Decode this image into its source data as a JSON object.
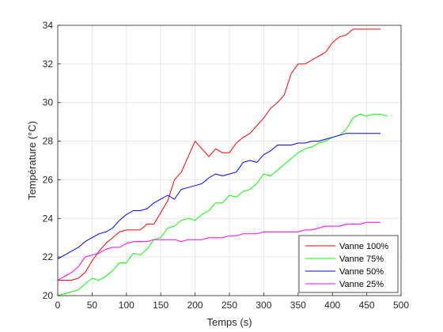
{
  "chart_data": {
    "type": "line",
    "title": "",
    "xlabel": "Temps (s)",
    "ylabel": "Température (°C)",
    "xlim": [
      0,
      500
    ],
    "ylim": [
      20,
      34
    ],
    "xticks": [
      0,
      50,
      100,
      150,
      200,
      250,
      300,
      350,
      400,
      450,
      500
    ],
    "yticks": [
      20,
      22,
      24,
      26,
      28,
      30,
      32,
      34
    ],
    "grid": true,
    "legend_position": "bottom-right",
    "series": [
      {
        "name": "Vanne 100%",
        "color": "#ff0000",
        "x": [
          0,
          10,
          20,
          30,
          40,
          50,
          60,
          70,
          80,
          90,
          100,
          110,
          120,
          130,
          140,
          150,
          160,
          170,
          180,
          190,
          200,
          210,
          220,
          230,
          240,
          250,
          260,
          270,
          280,
          290,
          300,
          310,
          320,
          330,
          340,
          350,
          360,
          370,
          380,
          390,
          400,
          410,
          420,
          430,
          440,
          450,
          460,
          470
        ],
        "y": [
          20.8,
          20.8,
          20.8,
          20.9,
          21.2,
          21.8,
          22.3,
          22.7,
          23.0,
          23.3,
          23.4,
          23.4,
          23.4,
          23.7,
          23.7,
          24.3,
          24.9,
          26.0,
          26.4,
          27.2,
          28.0,
          27.6,
          27.2,
          27.6,
          27.4,
          27.4,
          27.9,
          28.2,
          28.4,
          28.8,
          29.2,
          29.7,
          30.0,
          30.4,
          31.5,
          32.0,
          32.0,
          32.2,
          32.4,
          32.6,
          33.1,
          33.4,
          33.5,
          33.8,
          33.8,
          33.8,
          33.8,
          33.8
        ],
        "y_note": ""
      },
      {
        "name": "Vanne 75%",
        "color": "#00ff00",
        "x": [
          0,
          10,
          20,
          30,
          40,
          50,
          60,
          70,
          80,
          90,
          100,
          110,
          120,
          130,
          140,
          150,
          160,
          170,
          180,
          190,
          200,
          210,
          220,
          230,
          240,
          250,
          260,
          270,
          280,
          290,
          300,
          310,
          320,
          330,
          340,
          350,
          360,
          370,
          380,
          390,
          400,
          410,
          420,
          430,
          440,
          450,
          460,
          470,
          480
        ],
        "y": [
          20.0,
          20.1,
          20.2,
          20.3,
          20.6,
          20.9,
          20.8,
          21.0,
          21.3,
          21.7,
          21.7,
          22.2,
          22.1,
          22.4,
          22.9,
          23.0,
          23.5,
          23.6,
          23.9,
          24.0,
          23.9,
          24.2,
          24.4,
          24.8,
          24.8,
          25.2,
          25.1,
          25.4,
          25.5,
          25.8,
          26.3,
          26.2,
          26.5,
          26.8,
          27.1,
          27.4,
          27.6,
          27.7,
          27.9,
          28.0,
          28.2,
          28.3,
          28.6,
          29.2,
          29.4,
          29.3,
          29.4,
          29.4,
          29.3
        ],
        "y_note": ""
      },
      {
        "name": "Vanne 50%",
        "color": "#0000ff",
        "x": [
          0,
          10,
          20,
          30,
          40,
          50,
          60,
          70,
          80,
          90,
          100,
          110,
          120,
          130,
          140,
          150,
          160,
          170,
          180,
          190,
          200,
          210,
          220,
          230,
          240,
          250,
          260,
          270,
          280,
          290,
          300,
          310,
          320,
          330,
          340,
          350,
          360,
          370,
          380,
          390,
          400,
          410,
          420,
          430,
          440,
          450,
          460,
          470
        ],
        "y": [
          21.9,
          22.1,
          22.3,
          22.5,
          22.8,
          23.0,
          23.2,
          23.3,
          23.5,
          23.9,
          24.2,
          24.4,
          24.4,
          24.5,
          24.8,
          25.0,
          25.2,
          25.0,
          25.5,
          25.6,
          25.7,
          25.8,
          26.1,
          26.3,
          26.2,
          26.3,
          26.4,
          26.9,
          27.0,
          26.9,
          27.3,
          27.5,
          27.8,
          27.8,
          27.8,
          27.9,
          27.9,
          28.0,
          28.0,
          28.1,
          28.2,
          28.3,
          28.4,
          28.4,
          28.4,
          28.4,
          28.4,
          28.4
        ],
        "y_note": ""
      },
      {
        "name": "Vanne 25%",
        "color": "#ff00ff",
        "x": [
          0,
          10,
          20,
          30,
          40,
          50,
          60,
          70,
          80,
          90,
          100,
          110,
          120,
          130,
          140,
          150,
          160,
          170,
          180,
          190,
          200,
          210,
          220,
          230,
          240,
          250,
          260,
          270,
          280,
          290,
          300,
          310,
          320,
          330,
          340,
          350,
          360,
          370,
          380,
          390,
          400,
          410,
          420,
          430,
          440,
          450,
          460,
          470
        ],
        "y": [
          20.8,
          21.0,
          21.2,
          21.5,
          22.0,
          22.1,
          22.2,
          22.4,
          22.5,
          22.5,
          22.7,
          22.8,
          22.8,
          22.8,
          22.9,
          22.9,
          22.9,
          22.9,
          22.8,
          22.9,
          22.9,
          22.9,
          23.0,
          23.0,
          23.0,
          23.1,
          23.1,
          23.2,
          23.2,
          23.2,
          23.3,
          23.3,
          23.3,
          23.3,
          23.3,
          23.3,
          23.4,
          23.4,
          23.5,
          23.6,
          23.6,
          23.6,
          23.7,
          23.7,
          23.7,
          23.8,
          23.8,
          23.8
        ],
        "y_note": ""
      }
    ]
  }
}
